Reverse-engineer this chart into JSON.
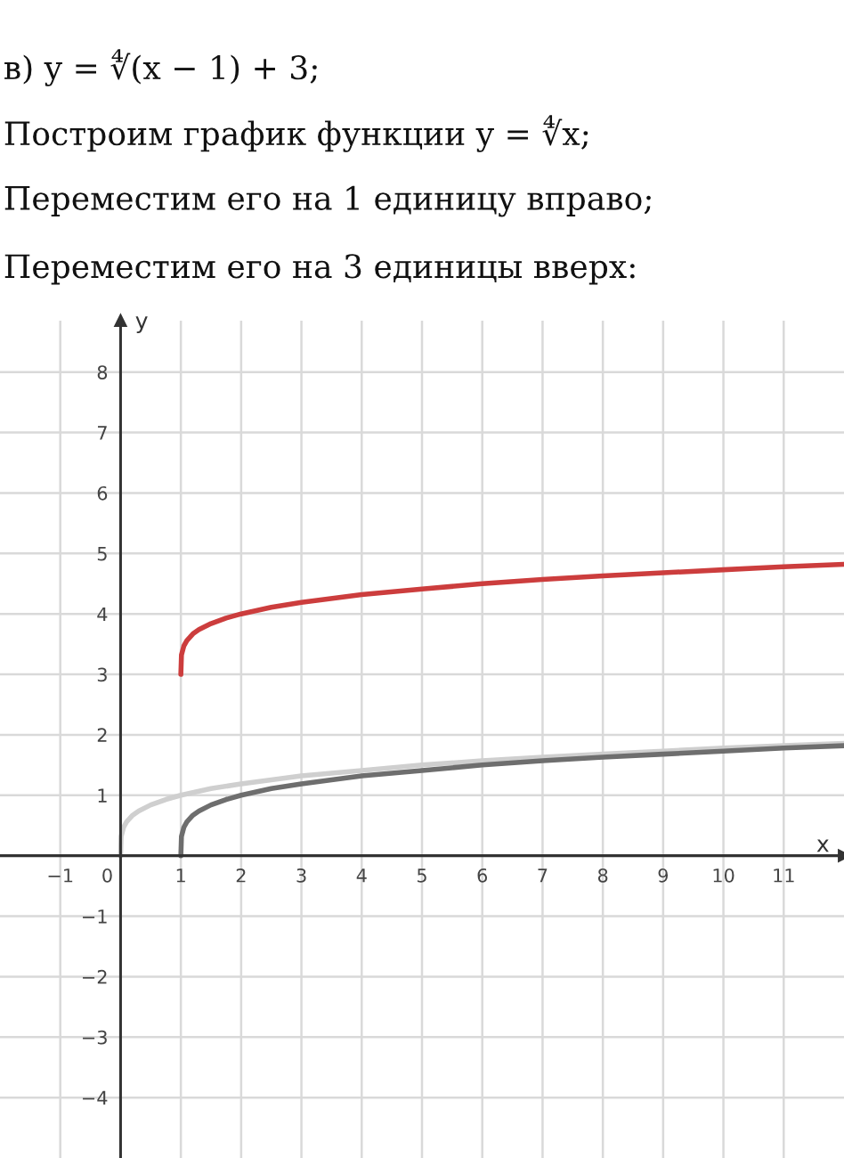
{
  "chart_data": {
    "type": "line",
    "title": "в) y = ∜(x − 1) + 3;",
    "annotations": [
      "Построим график функции y = ∜x;",
      "Переместим его на 1 единицу вправо;",
      "Переместим его на 3 единицы вверх:"
    ],
    "xlabel": "x",
    "ylabel": "y",
    "series": [
      {
        "color": "#cfcfcf",
        "x": [
          0,
          0.01,
          0.05,
          0.1,
          0.2,
          0.3,
          0.5,
          0.75,
          1,
          1.5,
          2,
          3,
          4,
          5,
          6,
          7,
          8,
          9,
          10,
          11,
          12
        ],
        "values": [
          0,
          0.32,
          0.47,
          0.56,
          0.67,
          0.74,
          0.84,
          0.93,
          1,
          1.11,
          1.19,
          1.32,
          1.41,
          1.5,
          1.57,
          1.63,
          1.68,
          1.73,
          1.78,
          1.82,
          1.86
        ]
      },
      {
        "color": "#6e6e6e",
        "x": [
          1,
          1.01,
          1.05,
          1.1,
          1.2,
          1.3,
          1.5,
          1.75,
          2,
          2.5,
          3,
          4,
          5,
          6,
          7,
          8,
          9,
          10,
          11,
          12
        ],
        "values": [
          0,
          0.32,
          0.47,
          0.56,
          0.67,
          0.74,
          0.84,
          0.93,
          1,
          1.11,
          1.19,
          1.32,
          1.41,
          1.5,
          1.57,
          1.63,
          1.68,
          1.73,
          1.78,
          1.82
        ]
      },
      {
        "color": "#cc3d3d",
        "x": [
          1,
          1.01,
          1.05,
          1.1,
          1.2,
          1.3,
          1.5,
          1.75,
          2,
          2.5,
          3,
          4,
          5,
          6,
          7,
          8,
          9,
          10,
          11,
          12
        ],
        "values": [
          3,
          3.32,
          3.47,
          3.56,
          3.67,
          3.74,
          3.84,
          3.93,
          4,
          4.11,
          4.19,
          4.32,
          4.41,
          4.5,
          4.57,
          4.63,
          4.68,
          4.73,
          4.78,
          4.82
        ]
      }
    ],
    "xlim": [
      -2,
      12
    ],
    "ylim": [
      -5,
      8.85
    ],
    "xticks": [
      -1,
      0,
      1,
      2,
      3,
      4,
      5,
      6,
      7,
      8,
      9,
      10,
      11
    ],
    "yticks": [
      -4,
      -3,
      -2,
      -1,
      1,
      2,
      3,
      4,
      5,
      6,
      7,
      8
    ],
    "grid": true,
    "line_style": "solid"
  }
}
